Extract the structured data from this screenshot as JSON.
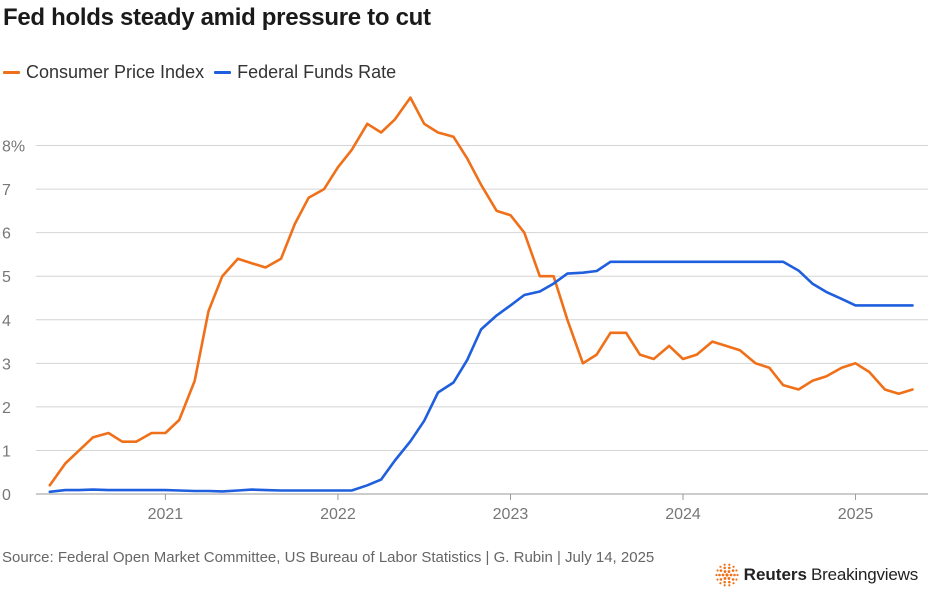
{
  "title": "Fed holds steady amid pressure to cut",
  "legend": {
    "items": [
      {
        "label": "Consumer Price Index",
        "color": "#f07019"
      },
      {
        "label": "Federal Funds Rate",
        "color": "#1f5fde"
      }
    ]
  },
  "footer": {
    "source": "Source: Federal Open Market Committee, US Bureau of Labor Statistics | G. Rubin | July 14, 2025"
  },
  "brand": {
    "name": "Reuters",
    "product": "Breakingviews",
    "logo_icon": "reuters-dot-logo-icon",
    "accent_color": "#f07019"
  },
  "chart_data": {
    "type": "line",
    "title": "Fed holds steady amid pressure to cut",
    "xlabel": "",
    "ylabel": "",
    "x_range": [
      2020.25,
      2025.42
    ],
    "ylim": [
      0,
      9
    ],
    "y_ticks": [
      {
        "value": 0,
        "label": "0"
      },
      {
        "value": 1,
        "label": "1"
      },
      {
        "value": 2,
        "label": "2"
      },
      {
        "value": 3,
        "label": "3"
      },
      {
        "value": 4,
        "label": "4"
      },
      {
        "value": 5,
        "label": "5"
      },
      {
        "value": 6,
        "label": "6"
      },
      {
        "value": 7,
        "label": "7"
      },
      {
        "value": 8,
        "label": "8%"
      }
    ],
    "x_ticks": [
      {
        "value": 2021.0,
        "label": "2021"
      },
      {
        "value": 2022.0,
        "label": "2022"
      },
      {
        "value": 2023.0,
        "label": "2023"
      },
      {
        "value": 2024.0,
        "label": "2024"
      },
      {
        "value": 2025.0,
        "label": "2025"
      }
    ],
    "grid": true,
    "legend_position": "top-left",
    "series": [
      {
        "name": "Consumer Price Index",
        "color": "#f07019",
        "x": [
          2020.33,
          2020.42,
          2020.5,
          2020.58,
          2020.67,
          2020.75,
          2020.83,
          2020.92,
          2021.0,
          2021.08,
          2021.17,
          2021.25,
          2021.33,
          2021.42,
          2021.5,
          2021.58,
          2021.67,
          2021.75,
          2021.83,
          2021.92,
          2022.0,
          2022.08,
          2022.17,
          2022.25,
          2022.33,
          2022.42,
          2022.5,
          2022.58,
          2022.67,
          2022.75,
          2022.83,
          2022.92,
          2023.0,
          2023.08,
          2023.17,
          2023.25,
          2023.33,
          2023.42,
          2023.5,
          2023.58,
          2023.67,
          2023.75,
          2023.83,
          2023.92,
          2024.0,
          2024.08,
          2024.17,
          2024.25,
          2024.33,
          2024.42,
          2024.5,
          2024.58,
          2024.67,
          2024.75,
          2024.83,
          2024.92,
          2025.0,
          2025.08,
          2025.17,
          2025.25,
          2025.33
        ],
        "values": [
          0.2,
          0.7,
          1.0,
          1.3,
          1.4,
          1.2,
          1.2,
          1.4,
          1.4,
          1.7,
          2.6,
          4.2,
          5.0,
          5.4,
          5.3,
          5.2,
          5.4,
          6.2,
          6.8,
          7.0,
          7.5,
          7.9,
          8.5,
          8.3,
          8.6,
          9.1,
          8.5,
          8.3,
          8.2,
          7.7,
          7.1,
          6.5,
          6.4,
          6.0,
          5.0,
          5.0,
          4.0,
          3.0,
          3.2,
          3.7,
          3.7,
          3.2,
          3.1,
          3.4,
          3.1,
          3.2,
          3.5,
          3.4,
          3.3,
          3.0,
          2.9,
          2.5,
          2.4,
          2.6,
          2.7,
          2.9,
          3.0,
          2.8,
          2.4,
          2.3,
          2.4
        ]
      },
      {
        "name": "Federal Funds Rate",
        "color": "#1f5fde",
        "x": [
          2020.33,
          2020.42,
          2020.5,
          2020.58,
          2020.67,
          2020.75,
          2020.83,
          2020.92,
          2021.0,
          2021.08,
          2021.17,
          2021.25,
          2021.33,
          2021.42,
          2021.5,
          2021.58,
          2021.67,
          2021.75,
          2021.83,
          2021.92,
          2022.0,
          2022.08,
          2022.17,
          2022.25,
          2022.33,
          2022.42,
          2022.5,
          2022.58,
          2022.67,
          2022.75,
          2022.83,
          2022.92,
          2023.0,
          2023.08,
          2023.17,
          2023.25,
          2023.33,
          2023.42,
          2023.5,
          2023.58,
          2023.67,
          2023.75,
          2023.83,
          2023.92,
          2024.0,
          2024.08,
          2024.17,
          2024.25,
          2024.33,
          2024.42,
          2024.5,
          2024.58,
          2024.67,
          2024.75,
          2024.83,
          2024.92,
          2025.0,
          2025.08,
          2025.17,
          2025.25,
          2025.33
        ],
        "values": [
          0.05,
          0.09,
          0.09,
          0.1,
          0.09,
          0.09,
          0.09,
          0.09,
          0.09,
          0.08,
          0.07,
          0.07,
          0.06,
          0.08,
          0.1,
          0.09,
          0.08,
          0.08,
          0.08,
          0.08,
          0.08,
          0.08,
          0.2,
          0.33,
          0.77,
          1.21,
          1.68,
          2.33,
          2.56,
          3.08,
          3.78,
          4.1,
          4.33,
          4.57,
          4.65,
          4.83,
          5.06,
          5.08,
          5.12,
          5.33,
          5.33,
          5.33,
          5.33,
          5.33,
          5.33,
          5.33,
          5.33,
          5.33,
          5.33,
          5.33,
          5.33,
          5.33,
          5.13,
          4.83,
          4.64,
          4.48,
          4.33,
          4.33,
          4.33,
          4.33,
          4.33
        ]
      }
    ]
  }
}
